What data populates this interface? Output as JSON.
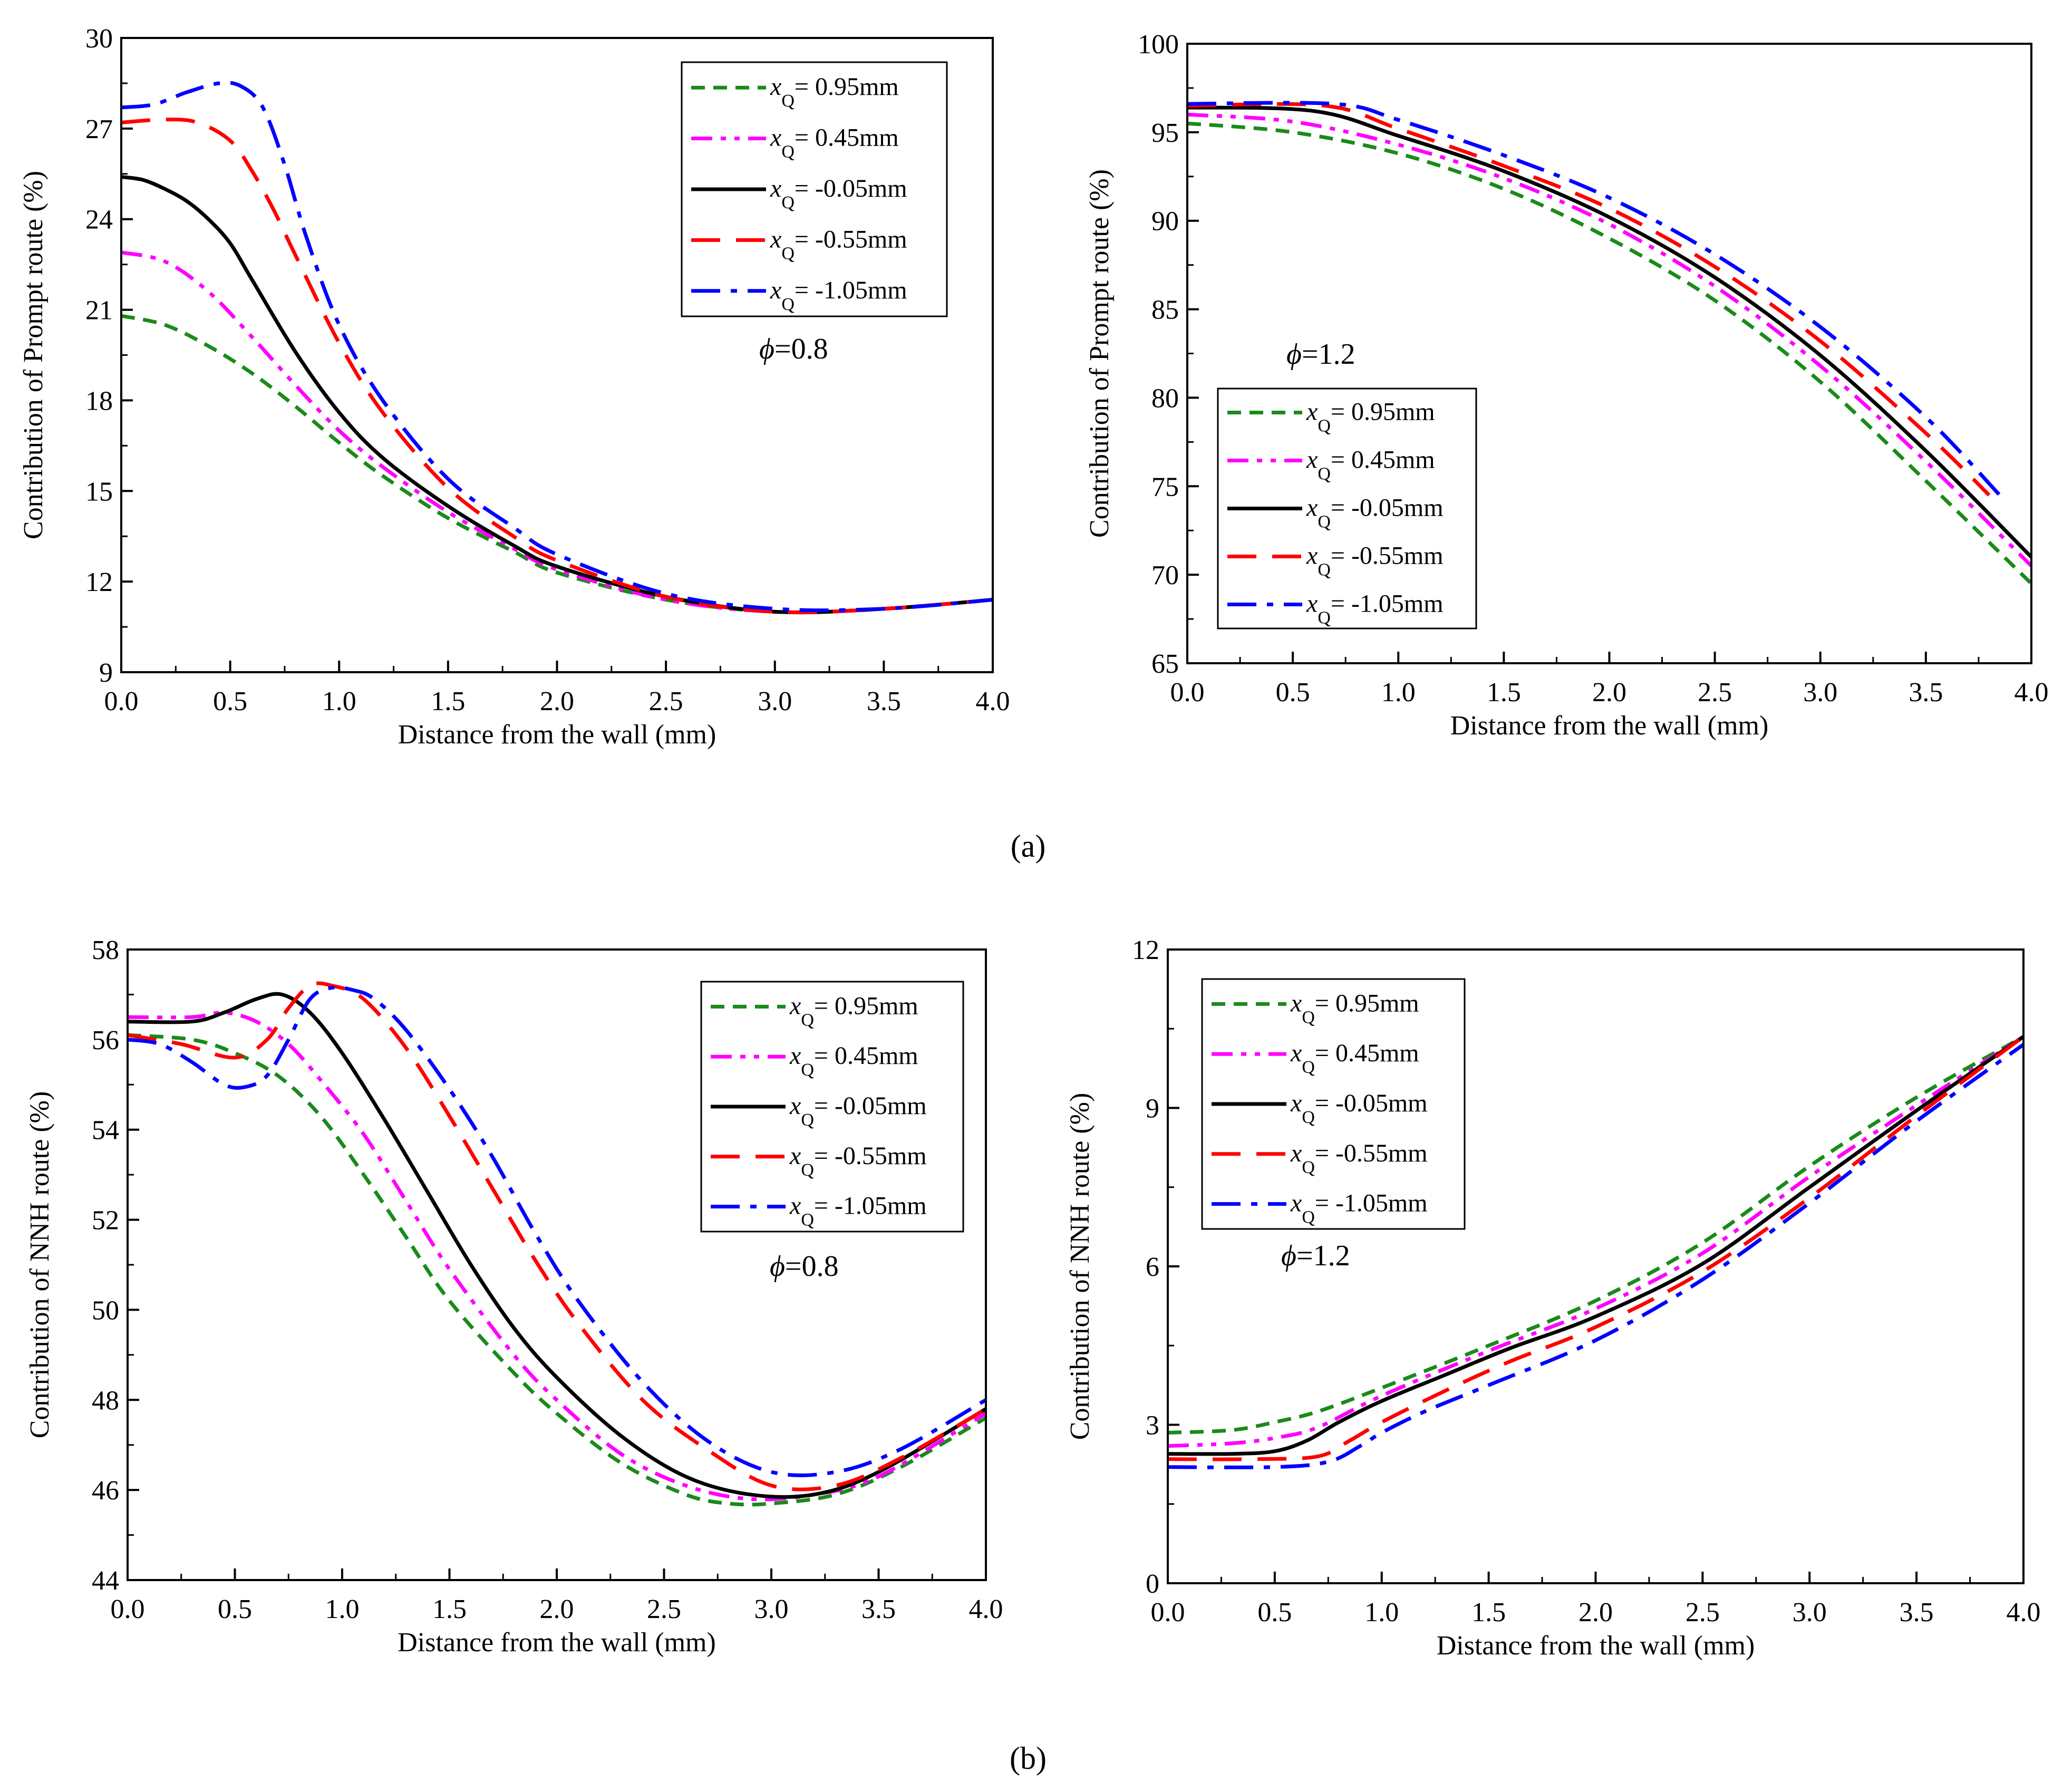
{
  "figure": {
    "caption_a": "(a)",
    "caption_b": "(b)"
  },
  "styles": {
    "0.95": {
      "color": "#1a8a1a",
      "dash": "dash-short"
    },
    "0.45": {
      "color": "#ff00ff",
      "dash": "dash-dot-dot"
    },
    "-0.05": {
      "color": "#000000",
      "dash": "solid"
    },
    "-0.55": {
      "color": "#ff0000",
      "dash": "dash-long"
    },
    "-1.05": {
      "color": "#0000ff",
      "dash": "dash-dot"
    }
  },
  "chart_data": [
    {
      "id": "a-left",
      "type": "line",
      "xlabel": "Distance from the wall (mm)",
      "ylabel": "Contribution of Prompt route (%)",
      "xlim": [
        0,
        4
      ],
      "ylim": [
        9,
        30
      ],
      "xticks": [
        "0.0",
        "0.5",
        "1.0",
        "1.5",
        "2.0",
        "2.5",
        "3.0",
        "3.5",
        "4.0"
      ],
      "yticks": [
        "9",
        "12",
        "15",
        "18",
        "21",
        "24",
        "27",
        "30"
      ],
      "annotation": "=0.8",
      "annotation_symbol": "ϕ",
      "legend_position": "top-right",
      "series": [
        {
          "name": "0.95",
          "label_var": "x",
          "label_sub": "Q",
          "label_text": "= 0.95mm",
          "x": [
            0,
            0.2,
            0.4,
            0.6,
            0.8,
            1.0,
            1.2,
            1.5,
            1.8,
            2.0,
            2.5,
            3.0,
            3.5,
            4.0
          ],
          "y": [
            20.8,
            20.5,
            19.8,
            18.9,
            17.8,
            16.6,
            15.5,
            14.1,
            13.0,
            12.3,
            11.4,
            11.0,
            11.1,
            11.4
          ]
        },
        {
          "name": "0.45",
          "label_var": "x",
          "label_sub": "Q",
          "label_text": "= 0.45mm",
          "x": [
            0,
            0.2,
            0.4,
            0.6,
            0.8,
            1.0,
            1.2,
            1.5,
            1.8,
            2.0,
            2.5,
            3.0,
            3.5,
            4.0
          ],
          "y": [
            22.9,
            22.6,
            21.6,
            20.1,
            18.5,
            17.0,
            15.8,
            14.3,
            13.1,
            12.4,
            11.4,
            11.0,
            11.1,
            11.4
          ]
        },
        {
          "name": "-0.05",
          "label_var": "x",
          "label_sub": "Q",
          "label_text": "= -0.05mm",
          "x": [
            0,
            0.1,
            0.2,
            0.3,
            0.4,
            0.5,
            0.6,
            0.8,
            1.0,
            1.2,
            1.5,
            1.8,
            2.0,
            2.5,
            3.0,
            3.5,
            4.0
          ],
          "y": [
            25.4,
            25.3,
            25.0,
            24.6,
            24.0,
            23.2,
            22.0,
            19.6,
            17.6,
            16.1,
            14.5,
            13.2,
            12.5,
            11.5,
            11.0,
            11.1,
            11.4
          ]
        },
        {
          "name": "-0.55",
          "label_var": "x",
          "label_sub": "Q",
          "label_text": "= -0.55mm",
          "x": [
            0,
            0.2,
            0.35,
            0.5,
            0.6,
            0.7,
            0.8,
            1.0,
            1.2,
            1.5,
            1.8,
            2.0,
            2.5,
            3.0,
            3.5,
            4.0
          ],
          "y": [
            27.2,
            27.3,
            27.2,
            26.6,
            25.6,
            24.3,
            22.8,
            19.9,
            17.6,
            15.1,
            13.5,
            12.7,
            11.5,
            11.0,
            11.1,
            11.4
          ]
        },
        {
          "name": "-1.05",
          "label_var": "x",
          "label_sub": "Q",
          "label_text": "= -1.05mm",
          "x": [
            0,
            0.15,
            0.3,
            0.45,
            0.55,
            0.65,
            0.75,
            0.85,
            1.0,
            1.2,
            1.5,
            1.8,
            2.0,
            2.5,
            3.0,
            3.5,
            4.0
          ],
          "y": [
            27.7,
            27.8,
            28.2,
            28.5,
            28.4,
            27.7,
            25.8,
            23.4,
            20.5,
            18.0,
            15.4,
            13.8,
            12.9,
            11.6,
            11.1,
            11.1,
            11.4
          ]
        }
      ]
    },
    {
      "id": "a-right",
      "type": "line",
      "xlabel": "Distance from the wall (mm)",
      "ylabel": "Contribution of Prompt route (%)",
      "xlim": [
        0,
        4
      ],
      "ylim": [
        65,
        100
      ],
      "xticks": [
        "0.0",
        "0.5",
        "1.0",
        "1.5",
        "2.0",
        "2.5",
        "3.0",
        "3.5",
        "4.0"
      ],
      "yticks": [
        "65",
        "70",
        "75",
        "80",
        "85",
        "90",
        "95",
        "100"
      ],
      "annotation": "=1.2",
      "annotation_symbol": "ϕ",
      "legend_position": "bottom-left",
      "series": [
        {
          "name": "0.95",
          "label_var": "x",
          "label_sub": "Q",
          "label_text": "= 0.95mm",
          "x": [
            0,
            0.5,
            1.0,
            1.5,
            2.0,
            2.5,
            3.0,
            3.5,
            4.0
          ],
          "y": [
            95.5,
            95.0,
            93.8,
            91.8,
            89.0,
            85.5,
            80.9,
            75.3,
            69.5
          ]
        },
        {
          "name": "0.45",
          "label_var": "x",
          "label_sub": "Q",
          "label_text": "= 0.45mm",
          "x": [
            0,
            0.5,
            1.0,
            1.5,
            2.0,
            2.5,
            3.0,
            3.5,
            4.0
          ],
          "y": [
            96.0,
            95.6,
            94.3,
            92.4,
            89.8,
            86.3,
            81.8,
            76.4,
            70.5
          ]
        },
        {
          "name": "-0.05",
          "label_var": "x",
          "label_sub": "Q",
          "label_text": "= -0.05mm",
          "x": [
            0,
            0.6,
            1.0,
            1.5,
            2.0,
            2.5,
            3.0,
            3.5,
            4.0
          ],
          "y": [
            96.4,
            96.2,
            94.8,
            92.8,
            90.2,
            86.8,
            82.4,
            77.0,
            71.0
          ]
        },
        {
          "name": "-0.55",
          "label_var": "x",
          "label_sub": "Q",
          "label_text": "= -0.55mm",
          "x": [
            0,
            0.65,
            1.0,
            1.5,
            2.0,
            2.5,
            3.0,
            3.5,
            3.8
          ],
          "y": [
            96.5,
            96.5,
            95.2,
            93.1,
            90.7,
            87.4,
            83.2,
            78.0,
            74.5
          ]
        },
        {
          "name": "-1.05",
          "label_var": "x",
          "label_sub": "Q",
          "label_text": "= -1.05mm",
          "x": [
            0,
            0.7,
            1.0,
            1.5,
            2.0,
            2.5,
            3.0,
            3.5,
            3.85
          ],
          "y": [
            96.6,
            96.6,
            95.7,
            93.7,
            91.3,
            88.1,
            84.0,
            78.9,
            74.5
          ]
        }
      ]
    },
    {
      "id": "b-left",
      "type": "line",
      "xlabel": "Distance from the wall (mm)",
      "ylabel": "Contribution of NNH route (%)",
      "xlim": [
        0,
        4
      ],
      "ylim": [
        44,
        58
      ],
      "xticks": [
        "0.0",
        "0.5",
        "1.0",
        "1.5",
        "2.0",
        "2.5",
        "3.0",
        "3.5",
        "4.0"
      ],
      "yticks": [
        "44",
        "46",
        "48",
        "50",
        "52",
        "54",
        "56",
        "58"
      ],
      "annotation": "=0.8",
      "annotation_symbol": "ϕ",
      "legend_position": "top-right",
      "series": [
        {
          "name": "0.95",
          "label_var": "x",
          "label_sub": "Q",
          "label_text": "= 0.95mm",
          "x": [
            0,
            0.3,
            0.5,
            0.7,
            0.9,
            1.1,
            1.3,
            1.5,
            1.8,
            2.0,
            2.3,
            2.6,
            2.8,
            3.0,
            3.3,
            3.6,
            4.0
          ],
          "y": [
            56.1,
            56.0,
            55.7,
            55.2,
            54.3,
            53.0,
            51.6,
            50.2,
            48.6,
            47.7,
            46.6,
            45.9,
            45.7,
            45.7,
            45.9,
            46.5,
            47.6
          ]
        },
        {
          "name": "0.45",
          "label_var": "x",
          "label_sub": "Q",
          "label_text": "= 0.45mm",
          "x": [
            0,
            0.3,
            0.45,
            0.6,
            0.75,
            0.9,
            1.1,
            1.3,
            1.5,
            1.8,
            2.0,
            2.3,
            2.6,
            2.9,
            3.2,
            3.5,
            4.0
          ],
          "y": [
            56.5,
            56.5,
            56.6,
            56.4,
            55.9,
            55.1,
            53.9,
            52.4,
            50.9,
            49.0,
            48.0,
            46.8,
            46.1,
            45.8,
            45.9,
            46.3,
            47.7
          ]
        },
        {
          "name": "-0.05",
          "label_var": "x",
          "label_sub": "Q",
          "label_text": "= -0.05mm",
          "x": [
            0,
            0.3,
            0.45,
            0.6,
            0.72,
            0.85,
            1.0,
            1.2,
            1.4,
            1.6,
            1.8,
            2.0,
            2.3,
            2.6,
            2.9,
            3.2,
            3.5,
            4.0
          ],
          "y": [
            56.4,
            56.4,
            56.6,
            56.9,
            57.0,
            56.6,
            55.7,
            54.2,
            52.6,
            51.0,
            49.6,
            48.5,
            47.2,
            46.3,
            45.9,
            45.9,
            46.4,
            47.8
          ]
        },
        {
          "name": "-0.55",
          "label_var": "x",
          "label_sub": "Q",
          "label_text": "= -0.55mm",
          "x": [
            0,
            0.25,
            0.5,
            0.65,
            0.75,
            0.85,
            0.95,
            1.1,
            1.3,
            1.5,
            1.7,
            1.9,
            2.1,
            2.4,
            2.7,
            3.0,
            3.3,
            3.6,
            4.0
          ],
          "y": [
            56.1,
            55.9,
            55.6,
            56.0,
            56.7,
            57.2,
            57.2,
            56.9,
            55.8,
            54.3,
            52.7,
            51.1,
            49.7,
            48.0,
            46.9,
            46.1,
            46.1,
            46.7,
            47.8
          ]
        },
        {
          "name": "-1.05",
          "label_var": "x",
          "label_sub": "Q",
          "label_text": "= -1.05mm",
          "x": [
            0,
            0.15,
            0.3,
            0.45,
            0.55,
            0.65,
            0.75,
            0.85,
            0.95,
            1.05,
            1.15,
            1.3,
            1.5,
            1.7,
            1.9,
            2.1,
            2.4,
            2.7,
            3.0,
            3.3,
            3.6,
            4.0
          ],
          "y": [
            56.0,
            55.9,
            55.5,
            55.0,
            54.95,
            55.2,
            56.0,
            56.9,
            57.15,
            57.1,
            56.9,
            56.2,
            54.9,
            53.4,
            51.7,
            50.2,
            48.4,
            47.1,
            46.4,
            46.4,
            46.9,
            48.0
          ]
        }
      ]
    },
    {
      "id": "b-right",
      "type": "line",
      "xlabel": "Distance from the wall (mm)",
      "ylabel": "Contribution of NNH route (%)",
      "xlim": [
        0,
        4
      ],
      "ylim": [
        0,
        12
      ],
      "xticks": [
        "0.0",
        "0.5",
        "1.0",
        "1.5",
        "2.0",
        "2.5",
        "3.0",
        "3.5",
        "4.0"
      ],
      "yticks": [
        "0",
        "3",
        "6",
        "9",
        "12"
      ],
      "annotation": "=1.2",
      "annotation_symbol": "ϕ",
      "legend_position": "top-left",
      "series": [
        {
          "name": "0.95",
          "label_var": "x",
          "label_sub": "Q",
          "label_text": "= 0.95mm",
          "x": [
            0,
            0.3,
            0.5,
            0.7,
            1.0,
            1.5,
            2.0,
            2.5,
            3.0,
            3.5,
            4.0
          ],
          "y": [
            2.85,
            2.9,
            3.05,
            3.25,
            3.7,
            4.5,
            5.35,
            6.45,
            7.9,
            9.2,
            10.35
          ]
        },
        {
          "name": "0.45",
          "label_var": "x",
          "label_sub": "Q",
          "label_text": "= 0.45mm",
          "x": [
            0,
            0.3,
            0.5,
            0.7,
            1.0,
            1.5,
            2.0,
            2.5,
            3.0,
            3.5,
            4.0
          ],
          "y": [
            2.6,
            2.65,
            2.75,
            2.95,
            3.55,
            4.4,
            5.2,
            6.25,
            7.7,
            9.05,
            10.35
          ]
        },
        {
          "name": "-0.05",
          "label_var": "x",
          "label_sub": "Q",
          "label_text": "= -0.05mm",
          "x": [
            0,
            0.3,
            0.5,
            0.65,
            0.8,
            1.0,
            1.3,
            1.6,
            2.0,
            2.5,
            3.0,
            3.5,
            4.0
          ],
          "y": [
            2.45,
            2.45,
            2.5,
            2.7,
            3.05,
            3.45,
            3.95,
            4.45,
            5.05,
            6.05,
            7.5,
            8.95,
            10.35
          ]
        },
        {
          "name": "-0.55",
          "label_var": "x",
          "label_sub": "Q",
          "label_text": "= -0.55mm",
          "x": [
            0,
            0.4,
            0.7,
            0.85,
            1.0,
            1.3,
            1.6,
            2.0,
            2.5,
            3.0,
            3.5,
            4.0
          ],
          "y": [
            2.35,
            2.35,
            2.4,
            2.7,
            3.05,
            3.65,
            4.2,
            4.85,
            5.9,
            7.3,
            8.85,
            10.35
          ]
        },
        {
          "name": "-1.05",
          "label_var": "x",
          "label_sub": "Q",
          "label_text": "= -1.05mm",
          "x": [
            0,
            0.5,
            0.75,
            0.9,
            1.0,
            1.2,
            1.5,
            2.0,
            2.5,
            3.0,
            3.5,
            4.0
          ],
          "y": [
            2.2,
            2.2,
            2.3,
            2.6,
            2.85,
            3.25,
            3.75,
            4.6,
            5.75,
            7.2,
            8.75,
            10.2
          ]
        }
      ]
    }
  ]
}
